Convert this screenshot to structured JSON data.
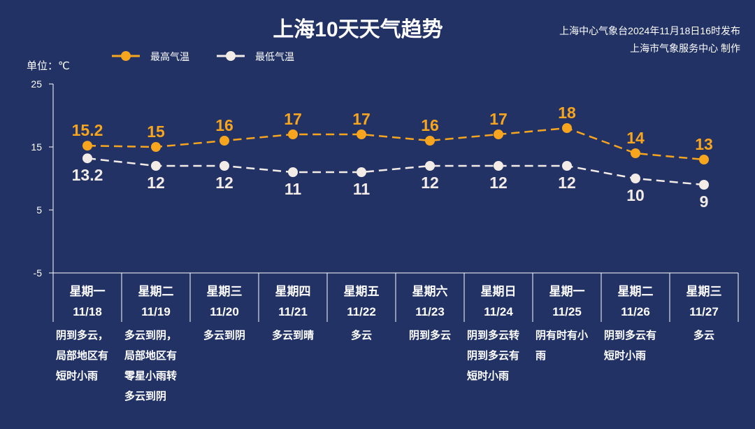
{
  "header": {
    "title": "上海10天天气趋势",
    "source_line1": "上海中心气象台2024年11月18日16时发布",
    "source_line2": "上海市气象服务中心 制作"
  },
  "legend": {
    "high_label": "最高气温",
    "low_label": "最低气温"
  },
  "unit_label": "单位：℃",
  "colors": {
    "background": "#223265",
    "high": "#f7a51e",
    "low": "#f2ebe6",
    "axis": "#ffffff"
  },
  "chart_data": {
    "type": "line",
    "xlabel": "",
    "ylabel": "单位：℃",
    "ylim": [
      -5,
      25
    ],
    "yticks": [
      "25",
      "15",
      "5",
      "-5"
    ],
    "grid": false,
    "legend_position": "top-left",
    "categories": [
      "11/18",
      "11/19",
      "11/20",
      "11/21",
      "11/22",
      "11/23",
      "11/24",
      "11/25",
      "11/26",
      "11/27"
    ],
    "weekdays": [
      "星期一",
      "星期二",
      "星期三",
      "星期四",
      "星期五",
      "星期六",
      "星期日",
      "星期一",
      "星期二",
      "星期三"
    ],
    "descriptions": [
      [
        "阴到多云，",
        "局部地区有",
        "短时小雨"
      ],
      [
        "多云到阴，",
        "局部地区有",
        "零星小雨转",
        "多云到阴"
      ],
      [
        "多云到阴"
      ],
      [
        "多云到晴"
      ],
      [
        "多云"
      ],
      [
        "阴到多云"
      ],
      [
        "阴到多云转",
        "阴到多云有",
        "短时小雨"
      ],
      [
        "阴有时有小",
        "雨"
      ],
      [
        "阴到多云有",
        "短时小雨"
      ],
      [
        "多云"
      ]
    ],
    "series": [
      {
        "name": "最高气温",
        "values": [
          15.2,
          15,
          16,
          17,
          17,
          16,
          17,
          18,
          14,
          13
        ],
        "labels": [
          "15.2",
          "15",
          "16",
          "17",
          "17",
          "16",
          "17",
          "18",
          "14",
          "13"
        ]
      },
      {
        "name": "最低气温",
        "values": [
          13.2,
          12,
          12,
          11,
          11,
          12,
          12,
          12,
          10,
          9
        ],
        "labels": [
          "13.2",
          "12",
          "12",
          "11",
          "11",
          "12",
          "12",
          "12",
          "10",
          "9"
        ]
      }
    ]
  }
}
